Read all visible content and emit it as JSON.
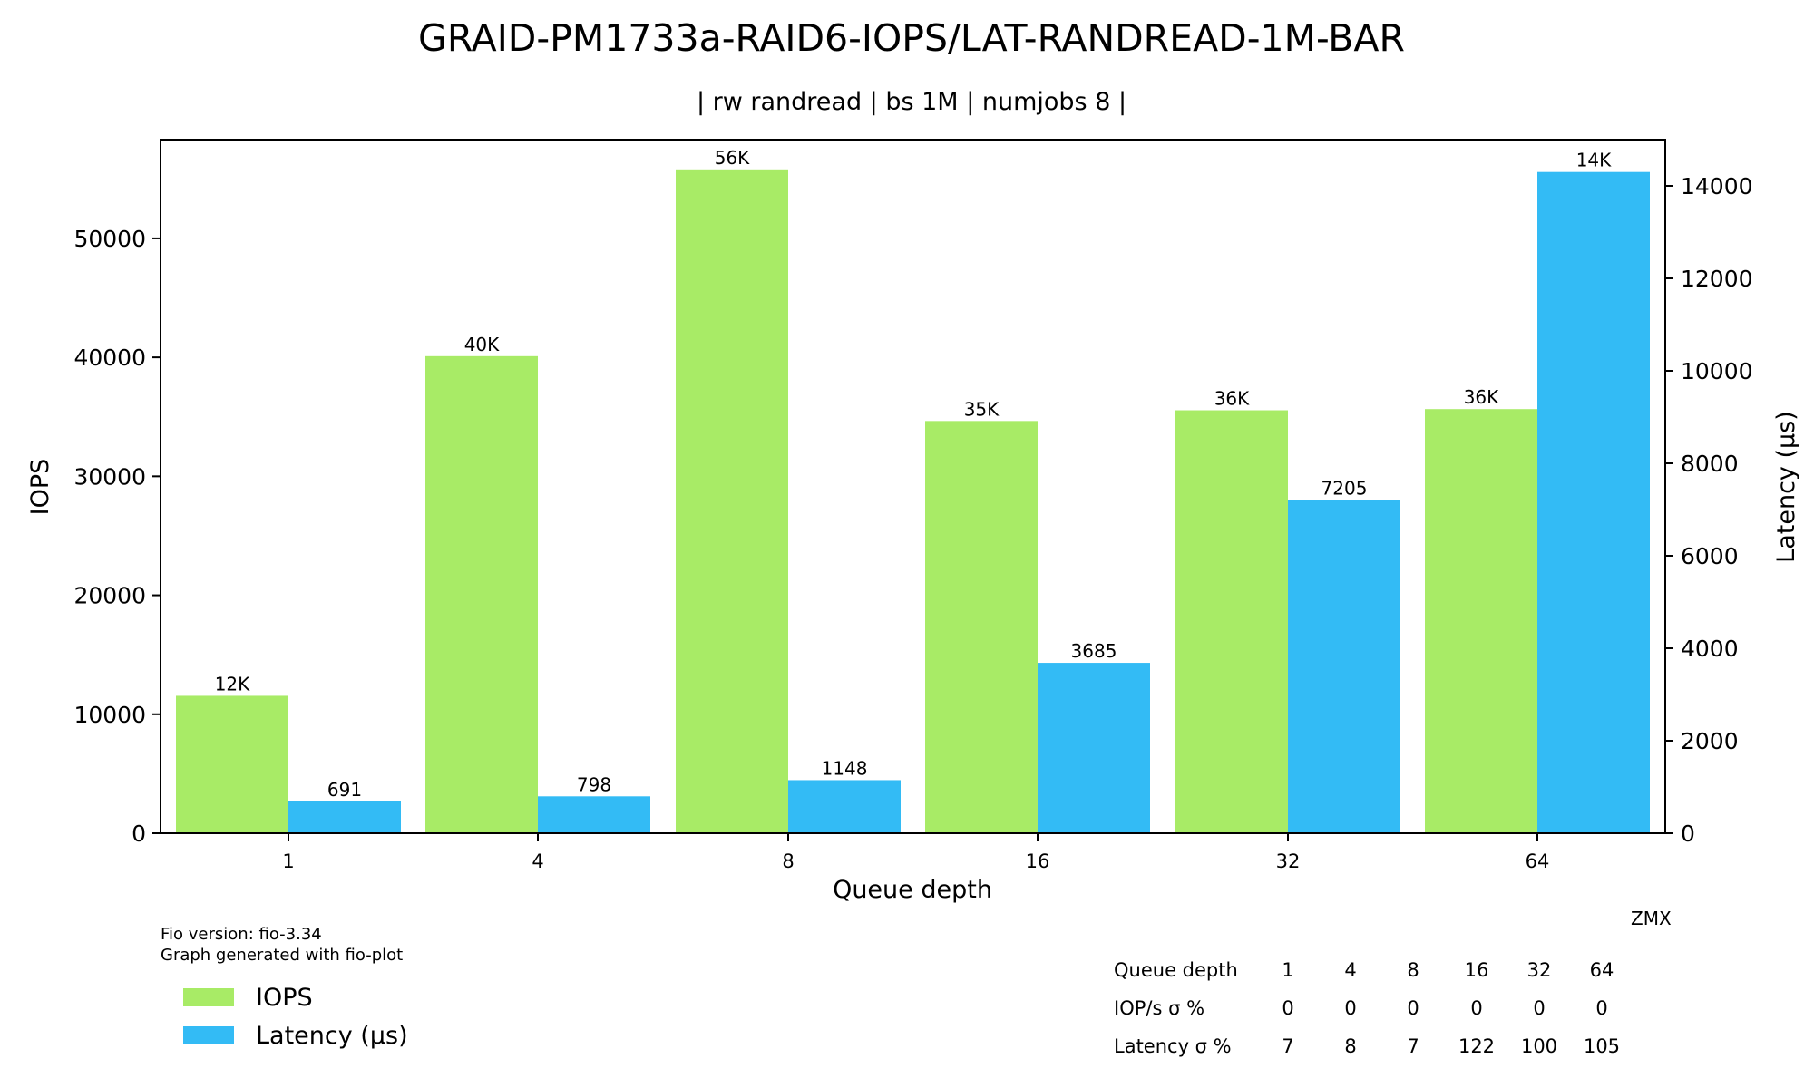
{
  "chart_data": {
    "type": "bar",
    "title": "GRAID-PM1733a-RAID6-IOPS/LAT-RANDREAD-1M-BAR",
    "subtitle": "| rw randread | bs 1M | numjobs 8 |",
    "xlabel": "Queue depth",
    "ylabel_left": "IOPS",
    "ylabel_right": "Latency (µs)",
    "categories": [
      "1",
      "4",
      "8",
      "16",
      "32",
      "64"
    ],
    "series": [
      {
        "name": "IOPS",
        "axis": "left",
        "color": "#a8eb66",
        "values": [
          11550,
          40100,
          55800,
          34650,
          35550,
          35650
        ],
        "labels": [
          "12K",
          "40K",
          "56K",
          "35K",
          "36K",
          "36K"
        ]
      },
      {
        "name": "Latency (µs)",
        "axis": "right",
        "color": "#33bbf5",
        "values": [
          691,
          798,
          1148,
          3685,
          7205,
          14300
        ],
        "labels": [
          "691",
          "798",
          "1148",
          "3685",
          "7205",
          "14K"
        ]
      }
    ],
    "ylim_left": [
      0,
      58300
    ],
    "ylim_right": [
      0,
      15000
    ],
    "yticks_left": [
      0,
      10000,
      20000,
      30000,
      40000,
      50000
    ],
    "yticks_right": [
      0,
      2000,
      4000,
      6000,
      8000,
      10000,
      12000,
      14000
    ],
    "grid": false,
    "legend_placement": "below-left"
  },
  "footer": {
    "fio_version": "Fio version: fio-3.34",
    "generated_with": "Graph generated with fio-plot",
    "watermark": "ZMX"
  },
  "stats_table": {
    "rows": [
      {
        "label": "Queue depth",
        "values": [
          "1",
          "4",
          "8",
          "16",
          "32",
          "64"
        ]
      },
      {
        "label": "IOP/s σ %",
        "values": [
          "0",
          "0",
          "0",
          "0",
          "0",
          "0"
        ]
      },
      {
        "label": "Latency σ %",
        "values": [
          "7",
          "8",
          "7",
          "122",
          "100",
          "105"
        ]
      }
    ]
  }
}
